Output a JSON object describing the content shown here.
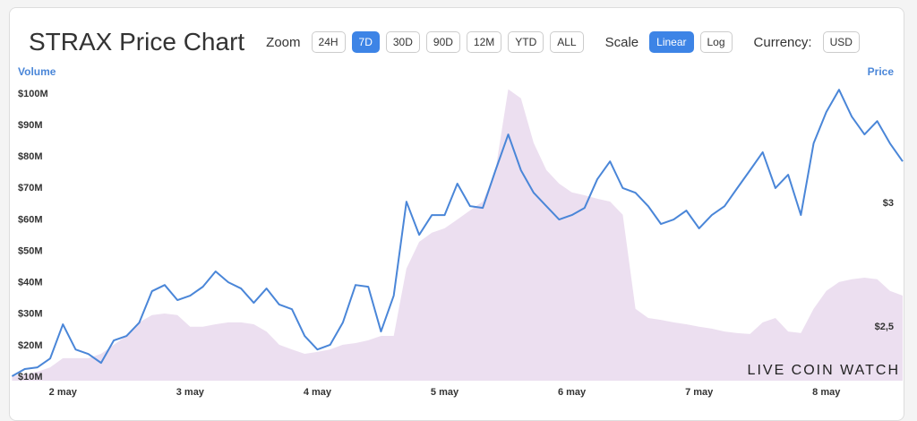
{
  "chart_data": {
    "type": "line",
    "title": "STRAX Price Chart",
    "ylabel": "Volume",
    "y2label": "Price",
    "x": [
      -0.4,
      -0.3,
      -0.2,
      -0.1,
      0,
      0.1,
      0.2,
      0.3,
      0.4,
      0.5,
      0.6,
      0.7,
      0.8,
      0.9,
      1,
      1.1,
      1.2,
      1.3,
      1.4,
      1.5,
      1.6,
      1.7,
      1.8,
      1.9,
      2,
      2.1,
      2.2,
      2.3,
      2.4,
      2.5,
      2.6,
      2.7,
      2.8,
      2.9,
      3,
      3.1,
      3.2,
      3.3,
      3.4,
      3.5,
      3.6,
      3.7,
      3.8,
      3.9,
      4,
      4.1,
      4.2,
      4.3,
      4.4,
      4.5,
      4.6,
      4.7,
      4.8,
      4.9,
      5,
      5.1,
      5.2,
      5.3,
      5.4,
      5.5,
      5.6,
      5.7,
      5.8,
      5.9,
      6,
      6.1,
      6.2,
      6.3,
      6.4,
      6.5,
      6.6
    ],
    "xlim": [
      -0.41,
      6.6
    ],
    "xticks": [
      {
        "value": 0,
        "label": "2 may"
      },
      {
        "value": 1,
        "label": "3 may"
      },
      {
        "value": 2,
        "label": "4 may"
      },
      {
        "value": 3,
        "label": "5 may"
      },
      {
        "value": 4,
        "label": "6 may"
      },
      {
        "value": 5,
        "label": "7 may"
      },
      {
        "value": 6,
        "label": "8 may"
      }
    ],
    "ylim": [
      8860000,
      104800000
    ],
    "yticks": [
      {
        "value": 10000000,
        "label": "$10M"
      },
      {
        "value": 20000000,
        "label": "$20M"
      },
      {
        "value": 30000000,
        "label": "$30M"
      },
      {
        "value": 40000000,
        "label": "$40M"
      },
      {
        "value": 50000000,
        "label": "$50M"
      },
      {
        "value": 60000000,
        "label": "$60M"
      },
      {
        "value": 70000000,
        "label": "$70M"
      },
      {
        "value": 80000000,
        "label": "$80M"
      },
      {
        "value": 90000000,
        "label": "$90M"
      },
      {
        "value": 100000000,
        "label": "$100M"
      }
    ],
    "y2lim": [
      2.283,
      3.504
    ],
    "y2ticks": [
      {
        "value": 3,
        "label": "$3"
      },
      {
        "value": 2.5,
        "label": "$2,5"
      }
    ],
    "grid": false,
    "series": [
      {
        "type": "area",
        "color": "#ecdff0",
        "values": [
          10300000,
          10900000,
          11700000,
          13100000,
          16000000,
          16000000,
          16000000,
          17400000,
          20300000,
          23100000,
          27400000,
          29700000,
          30200000,
          29700000,
          26000000,
          26000000,
          26800000,
          27400000,
          27400000,
          26800000,
          24500000,
          20300000,
          18800000,
          17400000,
          18000000,
          18800000,
          20300000,
          20800000,
          21700000,
          23100000,
          23100000,
          44500000,
          53000000,
          55900000,
          57300000,
          60100000,
          63000000,
          65800000,
          75800000,
          101500000,
          98600000,
          84400000,
          75800000,
          71500000,
          68700000,
          67800000,
          66700000,
          65800000,
          61600000,
          31700000,
          28800000,
          28200000,
          27400000,
          26800000,
          26000000,
          25400000,
          24500000,
          24000000,
          23700000,
          27400000,
          28800000,
          24500000,
          24000000,
          31700000,
          37400000,
          40200000,
          41100000,
          41600000,
          41100000,
          37400000,
          35900000
        ]
      },
      {
        "type": "line",
        "axis": "y2",
        "color": "#4a86d8",
        "values": [
          2.301,
          2.33,
          2.337,
          2.373,
          2.511,
          2.409,
          2.391,
          2.355,
          2.446,
          2.464,
          2.518,
          2.645,
          2.67,
          2.609,
          2.627,
          2.663,
          2.725,
          2.681,
          2.656,
          2.598,
          2.656,
          2.591,
          2.572,
          2.464,
          2.409,
          2.428,
          2.518,
          2.67,
          2.663,
          2.482,
          2.627,
          3.007,
          2.873,
          2.953,
          2.953,
          3.08,
          2.989,
          2.982,
          3.134,
          3.279,
          3.134,
          3.043,
          2.989,
          2.935,
          2.953,
          2.982,
          3.098,
          3.17,
          3.062,
          3.043,
          2.989,
          2.917,
          2.935,
          2.971,
          2.899,
          2.953,
          2.989,
          3.062,
          3.134,
          3.207,
          3.062,
          3.116,
          2.953,
          3.243,
          3.37,
          3.46,
          3.351,
          3.279,
          3.333,
          3.243,
          3.17
        ]
      }
    ],
    "watermark": "LIVE COIN WATCH"
  },
  "controls": {
    "zoom_label": "Zoom",
    "zoom_options": [
      "24H",
      "7D",
      "30D",
      "90D",
      "12M",
      "YTD",
      "ALL"
    ],
    "zoom_active": 1,
    "scale_label": "Scale",
    "scale_options": [
      "Linear",
      "Log"
    ],
    "scale_active": 0,
    "currency_label": "Currency:",
    "currency": "USD"
  }
}
